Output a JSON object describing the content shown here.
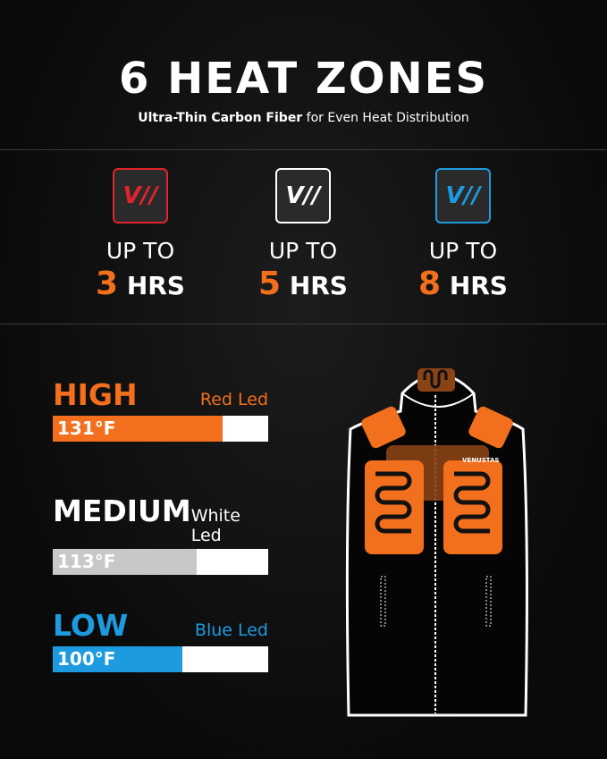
{
  "header": {
    "title": "6 HEAT ZONES",
    "subtitle_bold": "Ultra-Thin Carbon Fiber",
    "subtitle_rest": " for Even Heat Distribution"
  },
  "modes": [
    {
      "icon": "venustas-logo-red-icon",
      "logo": "V//",
      "color": "#e0242b",
      "upto": "UP TO",
      "num": "3",
      "unit": "HRS"
    },
    {
      "icon": "venustas-logo-white-icon",
      "logo": "V//",
      "color": "#ffffff",
      "upto": "UP TO",
      "num": "5",
      "unit": "HRS"
    },
    {
      "icon": "venustas-logo-blue-icon",
      "logo": "V//",
      "color": "#1e9be0",
      "upto": "UP TO",
      "num": "8",
      "unit": "HRS"
    }
  ],
  "levels": [
    {
      "name": "HIGH",
      "led": "Red Led",
      "temp": "131°F",
      "color": "#f26f1d",
      "fill_percent": 79
    },
    {
      "name": "MEDIUM",
      "led": "White Led",
      "temp": "113°F",
      "color": "#c8c8c8",
      "fill_percent": 67
    },
    {
      "name": "LOW",
      "led": "Blue Led",
      "temp": "100°F",
      "color": "#1e9be0",
      "fill_percent": 60
    }
  ],
  "vest": {
    "brand": "VENUSTAS",
    "accent": "#f26f1d"
  }
}
